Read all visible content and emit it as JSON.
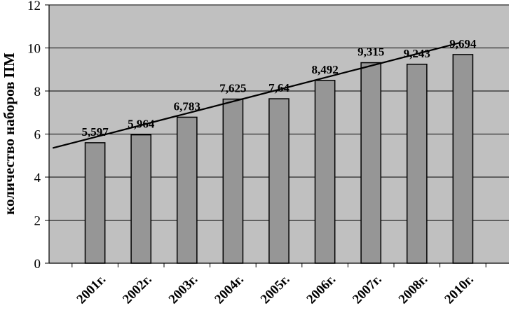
{
  "chart_data": {
    "type": "bar",
    "categories": [
      "2001г.",
      "2002г.",
      "2003г.",
      "2004г.",
      "2005г.",
      "2006г.",
      "2007г.",
      "2008г.",
      "2010г."
    ],
    "values": [
      5.597,
      5.964,
      6.783,
      7.625,
      7.64,
      8.492,
      9.315,
      9.243,
      9.694
    ],
    "data_labels": [
      "5,597",
      "5,964",
      "6,783",
      "7,625",
      "7,64",
      "8,492",
      "9,315",
      "9,243",
      "9,694"
    ],
    "title": "",
    "xlabel": "",
    "ylabel": "количество наборов ПМ",
    "ylim": [
      0,
      12
    ],
    "yticks": [
      0,
      2,
      4,
      6,
      8,
      10,
      12
    ],
    "grid": true,
    "trendline": {
      "type": "linear",
      "start": 5.35,
      "end": 10.25
    },
    "colors": {
      "plot_bg": "#c0c0c0",
      "bar": "#969696",
      "bar_edge": "#000000",
      "trend": "#000000"
    }
  }
}
